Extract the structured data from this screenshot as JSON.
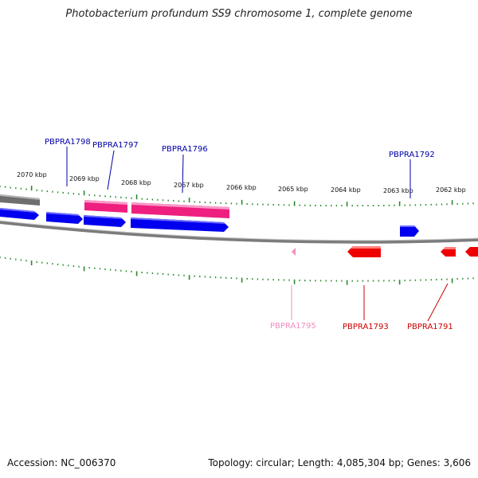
{
  "title": "Photobacterium profundum SS9 chromosome 1, complete genome",
  "footer": {
    "accession": "Accession: NC_006370",
    "summary": "Topology: circular; Length: 4,085,304 bp; Genes: 3,606"
  },
  "colors": {
    "forward_gene": "#0000ee",
    "forward_rna": "#ee1f7f",
    "reverse_gene": "#ee0000",
    "reverse_rna": "#ef8fc0",
    "backbone": "#8a8a8a",
    "ticks": "#2a8a2a",
    "label_forward": "#0000aa",
    "label_reverse": "#cc0000",
    "label_rna": "#ef8fc0"
  },
  "scale_labels": [
    "2070 kbp",
    "2069 kbp",
    "2068 kbp",
    "2067 kbp",
    "2066 kbp",
    "2065 kbp",
    "2064 kbp",
    "2063 kbp",
    "2062 kbp"
  ],
  "gene_labels": [
    {
      "text": "PBPRA1798",
      "kind": "forward"
    },
    {
      "text": "PBPRA1797",
      "kind": "forward"
    },
    {
      "text": "PBPRA1796",
      "kind": "forward"
    },
    {
      "text": "PBPRA1792",
      "kind": "forward"
    },
    {
      "text": "PBPRA1795",
      "kind": "rna"
    },
    {
      "text": "PBPRA1793",
      "kind": "reverse"
    },
    {
      "text": "PBPRA1791",
      "kind": "reverse"
    }
  ]
}
